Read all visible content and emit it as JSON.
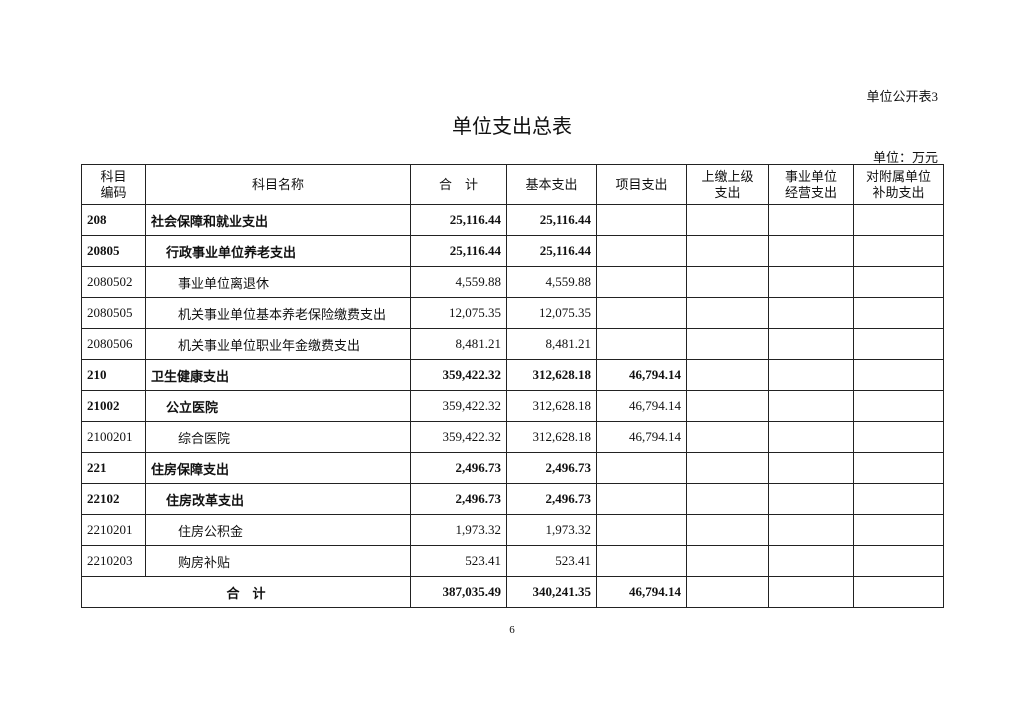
{
  "form_tag": "单位公开表3",
  "title": "单位支出总表",
  "unit": "单位：万元",
  "headers": [
    "科目\n编码",
    "科目名称",
    "合　计",
    "基本支出",
    "项目支出",
    "上缴上级\n支出",
    "事业单位\n经营支出",
    "对附属单位\n补助支出"
  ],
  "rows": [
    {
      "code": "208",
      "name": "社会保障和就业支出",
      "total": "25,116.44",
      "basic": "25,116.44",
      "project": "",
      "level": 1
    },
    {
      "code": "20805",
      "name": "行政事业单位养老支出",
      "total": "25,116.44",
      "basic": "25,116.44",
      "project": "",
      "level": 2
    },
    {
      "code": "2080502",
      "name": "事业单位离退休",
      "total": "4,559.88",
      "basic": "4,559.88",
      "project": "",
      "level": 3
    },
    {
      "code": "2080505",
      "name": "机关事业单位基本养老保险缴费支出",
      "total": "12,075.35",
      "basic": "12,075.35",
      "project": "",
      "level": 3
    },
    {
      "code": "2080506",
      "name": "机关事业单位职业年金缴费支出",
      "total": "8,481.21",
      "basic": "8,481.21",
      "project": "",
      "level": 3
    },
    {
      "code": "210",
      "name": "卫生健康支出",
      "total": "359,422.32",
      "basic": "312,628.18",
      "project": "46,794.14",
      "level": 1
    },
    {
      "code": "21002",
      "name": "公立医院",
      "total": "359,422.32",
      "basic": "312,628.18",
      "project": "46,794.14",
      "level": 2
    },
    {
      "code": "2100201",
      "name": "综合医院",
      "total": "359,422.32",
      "basic": "312,628.18",
      "project": "46,794.14",
      "level": 3
    },
    {
      "code": "221",
      "name": "住房保障支出",
      "total": "2,496.73",
      "basic": "2,496.73",
      "project": "",
      "level": 1
    },
    {
      "code": "22102",
      "name": "住房改革支出",
      "total": "2,496.73",
      "basic": "2,496.73",
      "project": "",
      "level": 2
    },
    {
      "code": "2210201",
      "name": "住房公积金",
      "total": "1,973.32",
      "basic": "1,973.32",
      "project": "",
      "level": 3
    },
    {
      "code": "2210203",
      "name": "购房补贴",
      "total": "523.41",
      "basic": "523.41",
      "project": "",
      "level": 3
    }
  ],
  "total": {
    "label": "合　计",
    "total": "387,035.49",
    "basic": "340,241.35",
    "project": "46,794.14"
  },
  "page_number": "6"
}
